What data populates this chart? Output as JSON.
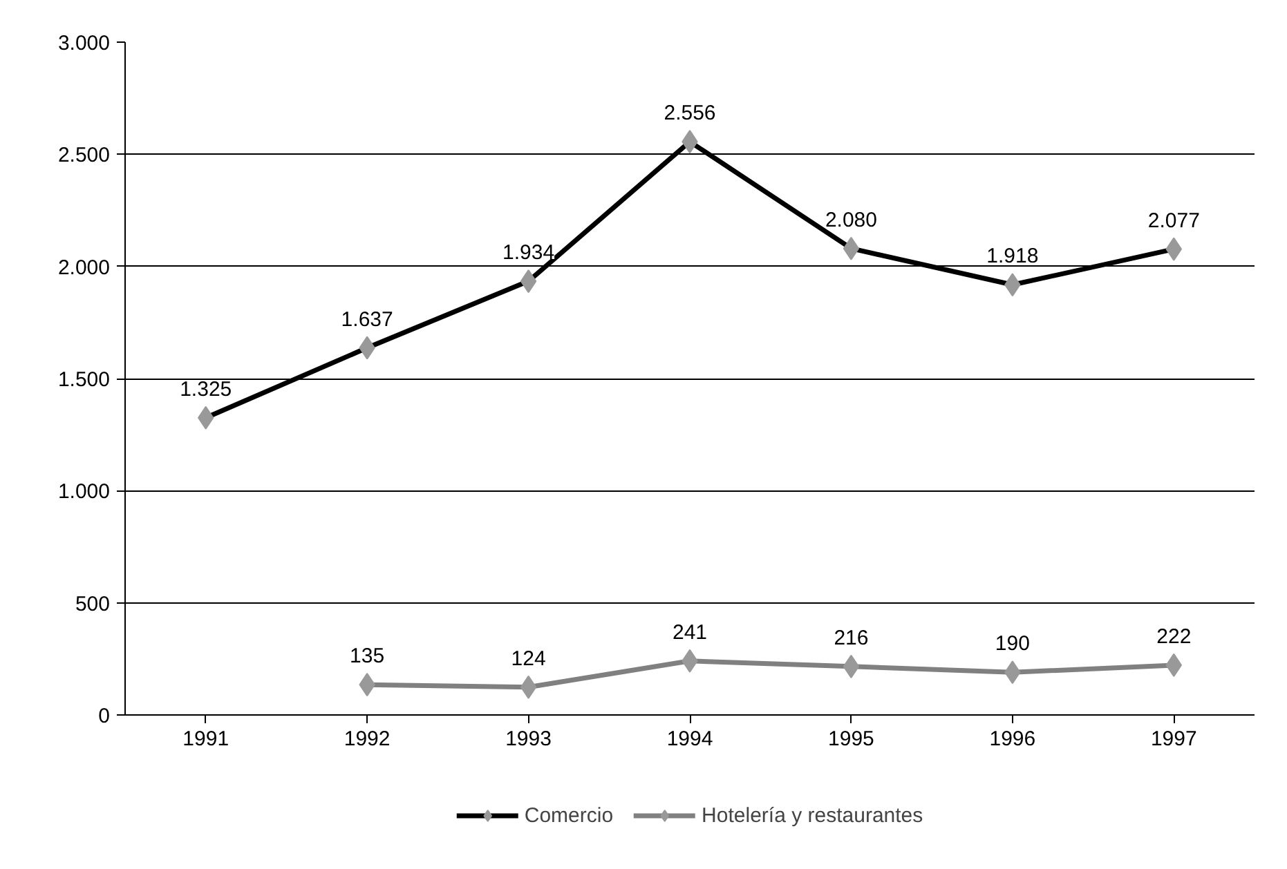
{
  "chart_data": {
    "type": "line",
    "categories": [
      "1991",
      "1992",
      "1993",
      "1994",
      "1995",
      "1996",
      "1997"
    ],
    "series": [
      {
        "name": "Comercio",
        "color": "#000000",
        "values": [
          1325,
          1637,
          1934,
          2556,
          2080,
          1918,
          2077
        ],
        "value_labels": [
          "1.325",
          "1.637",
          "1.934",
          "2.556",
          "2.080",
          "1.918",
          "2.077"
        ]
      },
      {
        "name": "Hotelería y restaurantes",
        "color": "#808080",
        "values": [
          null,
          135,
          124,
          241,
          216,
          190,
          222
        ],
        "value_labels": [
          null,
          "135",
          "124",
          "241",
          "216",
          "190",
          "222"
        ]
      }
    ],
    "ylim": [
      0,
      3000
    ],
    "yticks": [
      0,
      {
        "value": 500,
        "label": "500"
      },
      {
        "value": 1000,
        "label": "1.000"
      },
      {
        "value": 1500,
        "label": "1.500"
      },
      {
        "value": 2000,
        "label": "2.000"
      },
      {
        "value": 2500,
        "label": "2.500"
      },
      {
        "value": 3000,
        "label": "3.000"
      }
    ],
    "grid": "y",
    "legend": "bottom",
    "marker": "diamond",
    "line_style": "solid"
  }
}
